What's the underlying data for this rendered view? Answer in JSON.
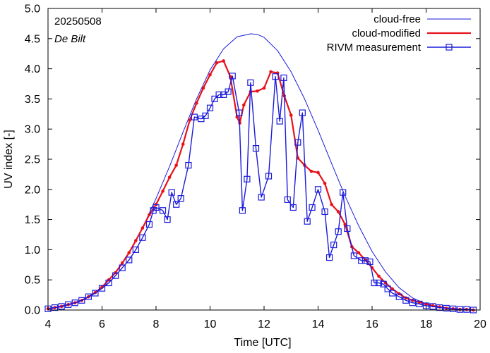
{
  "chart_data": {
    "type": "line",
    "title": "",
    "date_label": "20250508",
    "station_label": "De Bilt",
    "xlabel": "Time  [UTC]",
    "ylabel": "UV index  [-]",
    "xlim": [
      4,
      20
    ],
    "ylim": [
      0,
      5
    ],
    "xticks": [
      4,
      6,
      8,
      10,
      12,
      14,
      16,
      18,
      20
    ],
    "yticks": [
      "0.0",
      "0.5",
      "1.0",
      "1.5",
      "2.0",
      "2.5",
      "3.0",
      "3.5",
      "4.0",
      "4.5",
      "5.0"
    ],
    "legend_position": "top-right",
    "colors": {
      "clear": "#1a1adc",
      "cloud": "#e8111a",
      "meas": "#1a1adc"
    },
    "series": [
      {
        "name": "cloud-free",
        "x": [
          4.0,
          4.5,
          5.0,
          5.5,
          6.0,
          6.5,
          7.0,
          7.5,
          8.0,
          8.5,
          9.0,
          9.5,
          10.0,
          10.5,
          11.0,
          11.5,
          11.75,
          12.0,
          12.5,
          13.0,
          13.5,
          14.0,
          14.5,
          15.0,
          15.5,
          16.0,
          16.5,
          17.0,
          17.5,
          18.0,
          18.5,
          19.0,
          19.5,
          19.8
        ],
        "y": [
          0.02,
          0.06,
          0.12,
          0.22,
          0.38,
          0.62,
          0.95,
          1.36,
          1.85,
          2.38,
          2.95,
          3.5,
          3.98,
          4.33,
          4.53,
          4.58,
          4.57,
          4.52,
          4.3,
          3.95,
          3.5,
          2.98,
          2.43,
          1.89,
          1.4,
          0.97,
          0.63,
          0.37,
          0.2,
          0.1,
          0.05,
          0.02,
          0.01,
          0.0
        ]
      },
      {
        "name": "cloud-modified",
        "x": [
          4.0,
          4.25,
          4.5,
          4.75,
          5.0,
          5.25,
          5.5,
          5.75,
          6.0,
          6.25,
          6.5,
          6.75,
          7.0,
          7.25,
          7.5,
          7.75,
          8.0,
          8.25,
          8.5,
          8.75,
          9.0,
          9.25,
          9.5,
          9.75,
          10.0,
          10.25,
          10.5,
          10.75,
          11.0,
          11.1,
          11.25,
          11.5,
          11.75,
          12.0,
          12.25,
          12.5,
          12.75,
          13.0,
          13.25,
          13.5,
          13.75,
          14.0,
          14.25,
          14.5,
          14.75,
          15.0,
          15.25,
          15.5,
          15.75,
          16.0,
          16.25,
          16.5,
          16.75,
          17.0,
          17.25,
          17.5,
          17.75,
          18.0,
          18.25,
          18.5,
          18.75,
          19.0,
          19.25,
          19.5,
          19.75
        ],
        "y": [
          0.02,
          0.04,
          0.06,
          0.09,
          0.12,
          0.16,
          0.22,
          0.29,
          0.38,
          0.5,
          0.62,
          0.78,
          0.95,
          1.15,
          1.36,
          1.58,
          1.75,
          1.97,
          2.2,
          2.4,
          2.75,
          3.15,
          3.43,
          3.68,
          3.9,
          4.1,
          4.13,
          3.87,
          3.2,
          3.1,
          3.4,
          3.62,
          3.63,
          3.68,
          3.95,
          3.93,
          3.55,
          3.23,
          2.52,
          2.4,
          2.3,
          2.28,
          2.1,
          1.75,
          1.63,
          1.42,
          1.05,
          0.95,
          0.83,
          0.7,
          0.56,
          0.45,
          0.35,
          0.27,
          0.2,
          0.16,
          0.13,
          0.1,
          0.07,
          0.05,
          0.03,
          0.02,
          0.01,
          0.01,
          0.0
        ]
      },
      {
        "name": "RIVM measurement",
        "x": [
          4.0,
          4.25,
          4.5,
          4.75,
          5.0,
          5.25,
          5.5,
          5.75,
          6.0,
          6.25,
          6.5,
          6.75,
          7.0,
          7.25,
          7.5,
          7.75,
          7.9,
          8.0,
          8.25,
          8.42,
          8.58,
          8.75,
          8.92,
          9.2,
          9.42,
          9.67,
          9.83,
          10.0,
          10.17,
          10.33,
          10.5,
          10.67,
          10.83,
          11.08,
          11.2,
          11.37,
          11.5,
          11.7,
          11.9,
          12.17,
          12.42,
          12.58,
          12.73,
          12.87,
          13.08,
          13.25,
          13.42,
          13.6,
          13.78,
          14.0,
          14.25,
          14.42,
          14.58,
          14.75,
          14.92,
          15.08,
          15.33,
          15.6,
          15.75,
          15.92,
          16.08,
          16.25,
          16.42,
          16.58,
          16.75,
          17.0,
          17.25,
          17.5,
          17.75,
          18.0,
          18.25,
          18.5,
          18.75,
          19.0,
          19.25,
          19.5,
          19.75
        ],
        "y": [
          0.02,
          0.04,
          0.06,
          0.09,
          0.12,
          0.16,
          0.22,
          0.28,
          0.36,
          0.45,
          0.57,
          0.7,
          0.83,
          1.0,
          1.2,
          1.42,
          1.65,
          1.7,
          1.65,
          1.5,
          1.95,
          1.75,
          1.85,
          2.4,
          3.2,
          3.17,
          3.22,
          3.35,
          3.5,
          3.57,
          3.57,
          3.62,
          3.88,
          3.27,
          1.65,
          2.17,
          3.77,
          2.68,
          1.87,
          2.22,
          3.87,
          3.13,
          3.85,
          1.83,
          1.7,
          2.78,
          3.27,
          1.47,
          1.7,
          2.0,
          1.63,
          0.87,
          1.08,
          1.3,
          1.95,
          1.35,
          0.9,
          0.82,
          0.82,
          0.8,
          0.45,
          0.45,
          0.43,
          0.35,
          0.28,
          0.22,
          0.16,
          0.12,
          0.1,
          0.07,
          0.06,
          0.04,
          0.03,
          0.02,
          0.01,
          0.01,
          0.0
        ]
      }
    ]
  }
}
